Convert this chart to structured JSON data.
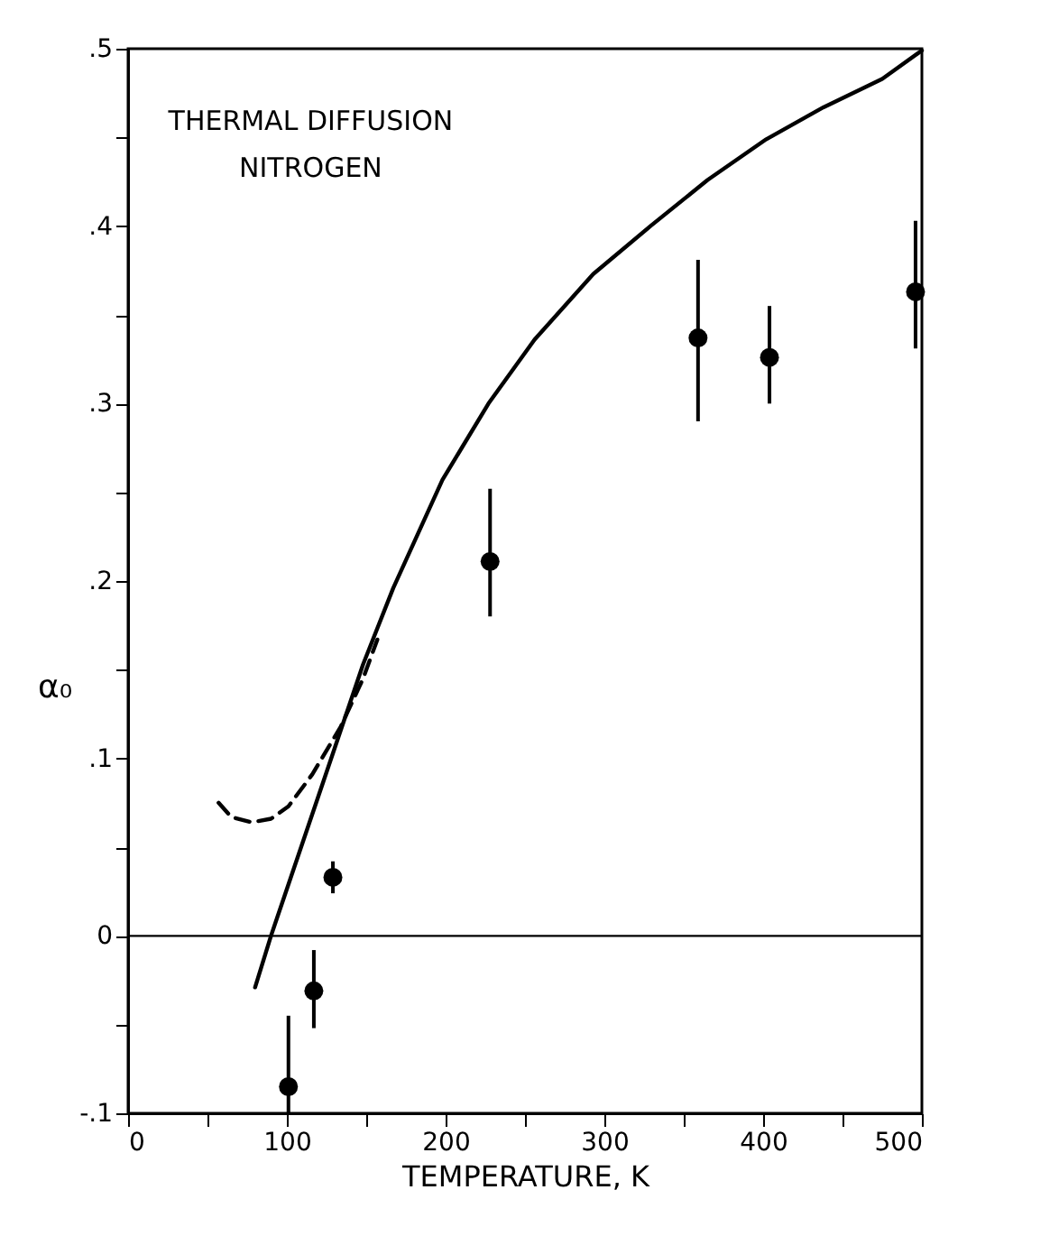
{
  "chart_data": {
    "type": "scatter",
    "xlabel": "TEMPERATURE, K",
    "ylabel": "α₀",
    "annotations": [
      "THERMAL DIFFUSION",
      "NITROGEN"
    ],
    "xlim": [
      0,
      500
    ],
    "ylim": [
      -0.1,
      0.5
    ],
    "xticks": [
      0,
      {
        "value": 50,
        "label": null
      },
      100,
      {
        "value": 150,
        "label": null
      },
      200,
      {
        "value": 250,
        "label": null
      },
      300,
      {
        "value": 350,
        "label": null
      },
      400,
      {
        "value": 450,
        "label": null
      },
      500
    ],
    "yticks": [
      {
        "value": -0.1,
        "label": "-.1"
      },
      {
        "value": -0.05,
        "label": null
      },
      0,
      {
        "value": 0.05,
        "label": null
      },
      {
        "value": 0.1,
        "label": ".1"
      },
      {
        "value": 0.15,
        "label": null
      },
      {
        "value": 0.2,
        "label": ".2"
      },
      {
        "value": 0.25,
        "label": null
      },
      {
        "value": 0.3,
        "label": ".3"
      },
      {
        "value": 0.35,
        "label": null
      },
      {
        "value": 0.4,
        "label": ".4"
      },
      {
        "value": 0.45,
        "label": null
      },
      {
        "value": 0.5,
        "label": ".5"
      }
    ],
    "ref_lines": [
      {
        "axis": "y",
        "value": 0,
        "color": "#000000"
      }
    ],
    "grid": false,
    "series": [
      {
        "color": "#000000",
        "marker": "circle",
        "x": [
          101,
          117,
          129,
          228,
          359,
          404,
          496
        ],
        "values": [
          -0.085,
          -0.031,
          0.033,
          0.211,
          0.337,
          0.326,
          0.363
        ],
        "errors": [
          [
            -0.1,
            -0.045
          ],
          [
            -0.052,
            -0.008
          ],
          [
            0.024,
            0.042
          ],
          [
            0.18,
            0.252
          ],
          [
            0.29,
            0.381
          ],
          [
            0.3,
            0.355
          ],
          [
            0.331,
            0.403
          ]
        ]
      },
      {
        "type": "line",
        "color": "#000000",
        "line_style": "solid",
        "x": [
          80,
          90,
          123,
          148,
          167,
          198,
          227,
          256,
          293,
          329,
          365,
          402,
          438,
          475,
          500
        ],
        "values": [
          -0.029,
          0,
          0.087,
          0.153,
          0.196,
          0.257,
          0.3,
          0.336,
          0.373,
          0.4,
          0.426,
          0.449,
          0.467,
          0.483,
          0.499
        ]
      },
      {
        "type": "line",
        "color": "#000000",
        "line_style": "dashed",
        "x": [
          57,
          65,
          78,
          90,
          101,
          116,
          134,
          148,
          157
        ],
        "values": [
          0.075,
          0.067,
          0.064,
          0.066,
          0.073,
          0.091,
          0.118,
          0.145,
          0.167
        ]
      }
    ]
  }
}
